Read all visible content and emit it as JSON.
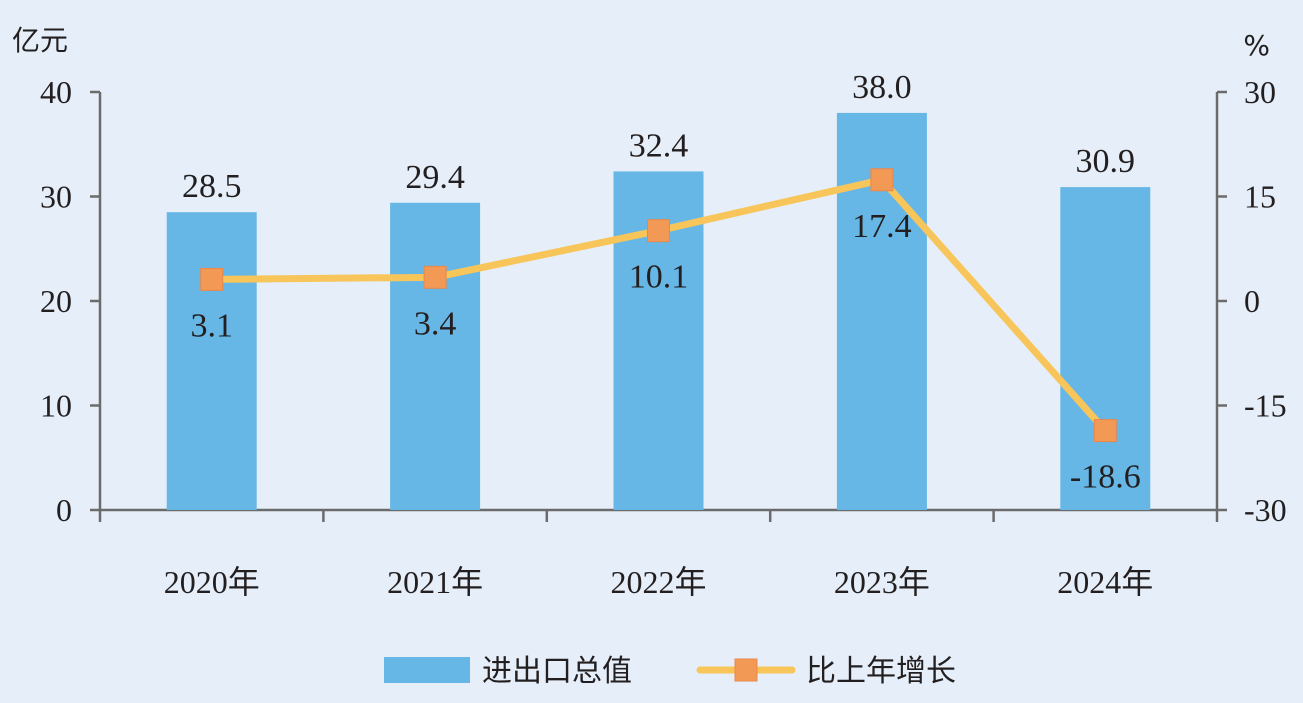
{
  "chart_data": {
    "type": "bar",
    "categories": [
      "2020年",
      "2021年",
      "2022年",
      "2023年",
      "2024年"
    ],
    "series": [
      {
        "name": "进出口总值",
        "type": "bar",
        "axis": "left",
        "values": [
          28.5,
          29.4,
          32.4,
          38.0,
          30.9
        ],
        "labels": [
          "28.5",
          "29.4",
          "32.4",
          "38.0",
          "30.9"
        ],
        "color": "#67b7e6"
      },
      {
        "name": "比上年增长",
        "type": "line",
        "axis": "right",
        "values": [
          3.1,
          3.4,
          10.1,
          17.4,
          -18.6
        ],
        "labels": [
          "3.1",
          "3.4",
          "10.1",
          "17.4",
          "-18.6"
        ],
        "color": "#f8c55a",
        "marker_color": "#f29a55"
      }
    ],
    "y_left": {
      "label": "亿元",
      "ylim": [
        0,
        40
      ],
      "ticks": [
        "0",
        "10",
        "20",
        "30",
        "40"
      ]
    },
    "y_right": {
      "label": "%",
      "ylim": [
        -30,
        30
      ],
      "ticks": [
        "-30",
        "-15",
        "0",
        "15",
        "30"
      ]
    },
    "legend_position": "bottom",
    "grid": false,
    "axis_color": "#6b6b6b"
  }
}
